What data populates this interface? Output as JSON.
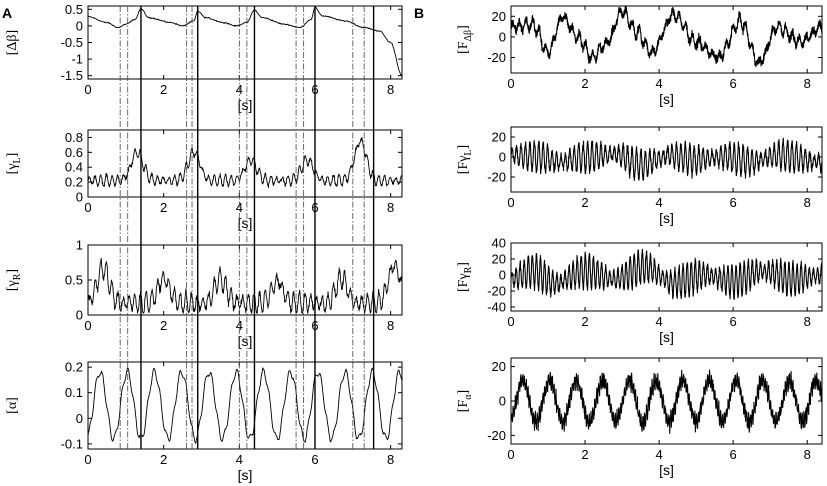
{
  "figure": {
    "panel_a_letter": "A",
    "panel_b_letter": "B"
  },
  "chart_data": [
    {
      "id": "A1",
      "type": "line",
      "xlabel": "[s]",
      "ylabel": {
        "pre": "[",
        "main": "Δβ",
        "sub": "",
        "post": "]"
      },
      "xlim": [
        0,
        8.3
      ],
      "ylim": [
        -1.6,
        0.6
      ],
      "xticks": [
        0,
        2,
        4,
        6,
        8
      ],
      "xtick_labels": [
        "0",
        "2",
        "4",
        "6",
        "8"
      ],
      "yticks": [
        0.5,
        0,
        -0.5,
        -1,
        -1.5
      ],
      "ytick_labels": [
        "0.5",
        "0",
        "-0.5",
        "-1",
        "-1.5"
      ],
      "style": "smooth",
      "color": "#000000",
      "signal": "beta",
      "anchors": [
        [
          0,
          0.28
        ],
        [
          0.5,
          0.1
        ],
        [
          0.8,
          -0.05
        ],
        [
          1.0,
          0.05
        ],
        [
          1.25,
          0.2
        ],
        [
          1.4,
          0.52
        ],
        [
          1.6,
          0.25
        ],
        [
          2.2,
          0.1
        ],
        [
          2.5,
          0.0
        ],
        [
          2.8,
          0.15
        ],
        [
          2.9,
          0.45
        ],
        [
          3.1,
          0.25
        ],
        [
          3.6,
          0.1
        ],
        [
          3.9,
          0.0
        ],
        [
          4.2,
          0.1
        ],
        [
          4.4,
          0.48
        ],
        [
          4.6,
          0.25
        ],
        [
          5.2,
          0.05
        ],
        [
          5.6,
          -0.05
        ],
        [
          5.9,
          0.2
        ],
        [
          6.0,
          0.55
        ],
        [
          6.2,
          0.3
        ],
        [
          6.8,
          0.15
        ],
        [
          7.3,
          -0.05
        ],
        [
          7.7,
          -0.15
        ],
        [
          8.0,
          -0.5
        ],
        [
          8.3,
          -1.5
        ]
      ],
      "noise": 0.025
    },
    {
      "id": "A2",
      "type": "line",
      "xlabel": "[s]",
      "ylabel": {
        "pre": "[",
        "main": "γ",
        "sub": "L",
        "post": "]"
      },
      "xlim": [
        0,
        8.3
      ],
      "ylim": [
        0,
        0.9
      ],
      "xticks": [
        0,
        2,
        4,
        6,
        8
      ],
      "xtick_labels": [
        "0",
        "2",
        "4",
        "6",
        "8"
      ],
      "yticks": [
        0.8,
        0.6,
        0.4,
        0.2,
        0
      ],
      "ytick_labels": [
        "0.8",
        "0.6",
        "0.4",
        "0.2",
        "0"
      ],
      "style": "bursty",
      "color": "#000000",
      "signal": "gammaL",
      "baseline": 0.22,
      "peaks": [
        [
          1.3,
          0.6
        ],
        [
          2.8,
          0.6
        ],
        [
          4.3,
          0.5
        ],
        [
          5.8,
          0.5
        ],
        [
          7.2,
          0.75
        ]
      ],
      "osc_amp": 0.06
    },
    {
      "id": "A3",
      "type": "line",
      "xlabel": "[s]",
      "ylabel": {
        "pre": "[",
        "main": "γ",
        "sub": "R",
        "post": "]"
      },
      "xlim": [
        0,
        8.3
      ],
      "ylim": [
        0,
        1
      ],
      "xticks": [
        0,
        2,
        4,
        6,
        8
      ],
      "xtick_labels": [
        "0",
        "2",
        "4",
        "6",
        "8"
      ],
      "yticks": [
        1,
        0.5,
        0
      ],
      "ytick_labels": [
        "1",
        "0.5",
        "0"
      ],
      "style": "bursty",
      "color": "#000000",
      "signal": "gammaR",
      "baseline": 0.2,
      "peaks": [
        [
          0.4,
          0.7
        ],
        [
          2.0,
          0.55
        ],
        [
          3.5,
          0.55
        ],
        [
          5.0,
          0.5
        ],
        [
          6.7,
          0.55
        ],
        [
          8.1,
          0.75
        ]
      ],
      "osc_amp": 0.12
    },
    {
      "id": "A4",
      "type": "line",
      "xlabel": "[s]",
      "ylabel": {
        "pre": "[",
        "main": "α",
        "sub": "",
        "post": "]"
      },
      "xlim": [
        0,
        8.3
      ],
      "ylim": [
        -0.12,
        0.22
      ],
      "xticks": [
        0,
        2,
        4,
        6,
        8
      ],
      "xtick_labels": [
        "0",
        "2",
        "4",
        "6",
        "8"
      ],
      "yticks": [
        0.2,
        0.1,
        0,
        -0.1
      ],
      "ytick_labels": [
        "0.2",
        "0.1",
        "0",
        "-0.1"
      ],
      "style": "oscillation",
      "color": "#000000",
      "signal": "alpha",
      "center": 0.05,
      "amplitude": 0.13,
      "period": 0.72
    },
    {
      "id": "B1",
      "type": "line",
      "xlabel": "[s]",
      "ylabel": {
        "pre": "[F",
        "main": "Δβ",
        "sub": "",
        "post": "]",
        "sub_style": true
      },
      "xlim": [
        0,
        8.4
      ],
      "ylim": [
        -35,
        30
      ],
      "xticks": [
        0,
        2,
        4,
        6,
        8
      ],
      "xtick_labels": [
        "0",
        "2",
        "4",
        "6",
        "8"
      ],
      "yticks": [
        20,
        0,
        -20
      ],
      "ytick_labels": [
        "20",
        "0",
        "-20"
      ],
      "style": "dense",
      "color": "#000000",
      "signal": "Fbeta",
      "slow": [
        [
          0,
          10
        ],
        [
          0.6,
          12
        ],
        [
          1.0,
          -15
        ],
        [
          1.4,
          20
        ],
        [
          1.8,
          0
        ],
        [
          2.2,
          -20
        ],
        [
          2.6,
          -5
        ],
        [
          3.0,
          25
        ],
        [
          3.4,
          5
        ],
        [
          3.8,
          -15
        ],
        [
          4.4,
          22
        ],
        [
          5.0,
          -5
        ],
        [
          5.6,
          -20
        ],
        [
          6.2,
          15
        ],
        [
          6.7,
          -25
        ],
        [
          7.2,
          10
        ],
        [
          7.8,
          -5
        ],
        [
          8.4,
          10
        ]
      ],
      "noise": 6,
      "fast_amp": 4,
      "fast_period": 0.18
    },
    {
      "id": "B2",
      "type": "line",
      "xlabel": "[s]",
      "ylabel": {
        "pre": "[F",
        "main": "γ",
        "sub": "L",
        "post": "]"
      },
      "xlim": [
        0,
        8.4
      ],
      "ylim": [
        -35,
        30
      ],
      "xticks": [
        0,
        2,
        4,
        6,
        8
      ],
      "xtick_labels": [
        "0",
        "2",
        "4",
        "6",
        "8"
      ],
      "yticks": [
        20,
        0,
        -20
      ],
      "ytick_labels": [
        "20",
        "0",
        "-20"
      ],
      "style": "dense",
      "color": "#000000",
      "signal": "FgammaL",
      "slow": [
        [
          0,
          2
        ],
        [
          0.8,
          0
        ],
        [
          1.3,
          -5
        ],
        [
          2.0,
          0
        ],
        [
          2.8,
          3
        ],
        [
          3.5,
          -8
        ],
        [
          4.3,
          2
        ],
        [
          5.0,
          -3
        ],
        [
          5.8,
          0
        ],
        [
          6.5,
          -5
        ],
        [
          7.2,
          2
        ],
        [
          8.4,
          -5
        ]
      ],
      "noise": 5,
      "fast_amp": 10,
      "fast_period": 0.12
    },
    {
      "id": "B3",
      "type": "line",
      "xlabel": "[s]",
      "ylabel": {
        "pre": "[F",
        "main": "γ",
        "sub": "R",
        "post": "]"
      },
      "xlim": [
        0,
        8.4
      ],
      "ylim": [
        -45,
        40
      ],
      "xticks": [
        0,
        2,
        4,
        6,
        8
      ],
      "xtick_labels": [
        "0",
        "2",
        "4",
        "6",
        "8"
      ],
      "yticks": [
        40,
        20,
        0,
        -20,
        -40
      ],
      "ytick_labels": [
        "40",
        "20",
        "0",
        "-20",
        "-40"
      ],
      "style": "dense",
      "color": "#000000",
      "signal": "FgammaR",
      "slow": [
        [
          0,
          -5
        ],
        [
          0.6,
          5
        ],
        [
          1.2,
          -10
        ],
        [
          2.0,
          5
        ],
        [
          2.8,
          -5
        ],
        [
          3.6,
          10
        ],
        [
          4.4,
          -10
        ],
        [
          5.2,
          0
        ],
        [
          6.0,
          -8
        ],
        [
          6.8,
          5
        ],
        [
          7.6,
          -5
        ],
        [
          8.4,
          0
        ]
      ],
      "noise": 6,
      "fast_amp": 14,
      "fast_period": 0.11
    },
    {
      "id": "B4",
      "type": "line",
      "xlabel": "[s]",
      "ylabel": {
        "pre": "[F",
        "main": "α",
        "sub": "",
        "post": "]",
        "sub_style": true
      },
      "xlim": [
        0,
        8.4
      ],
      "ylim": [
        -25,
        25
      ],
      "xticks": [
        0,
        2,
        4,
        6,
        8
      ],
      "xtick_labels": [
        "0",
        "2",
        "4",
        "6",
        "8"
      ],
      "yticks": [
        20,
        0,
        -20
      ],
      "ytick_labels": [
        "20",
        "0",
        "-20"
      ],
      "style": "dense_osc",
      "color": "#000000",
      "signal": "Falpha",
      "center": 0,
      "amplitude": 12,
      "period": 0.72,
      "noise": 5,
      "fast_amp": 3,
      "fast_period": 0.05
    }
  ],
  "event_markers": {
    "solid_s": [
      1.4,
      2.9,
      4.4,
      6.0,
      7.55
    ],
    "dashed_s": [
      0.85,
      1.05,
      2.6,
      2.75,
      4.0,
      4.2,
      5.5,
      5.7,
      7.0,
      7.3
    ]
  }
}
